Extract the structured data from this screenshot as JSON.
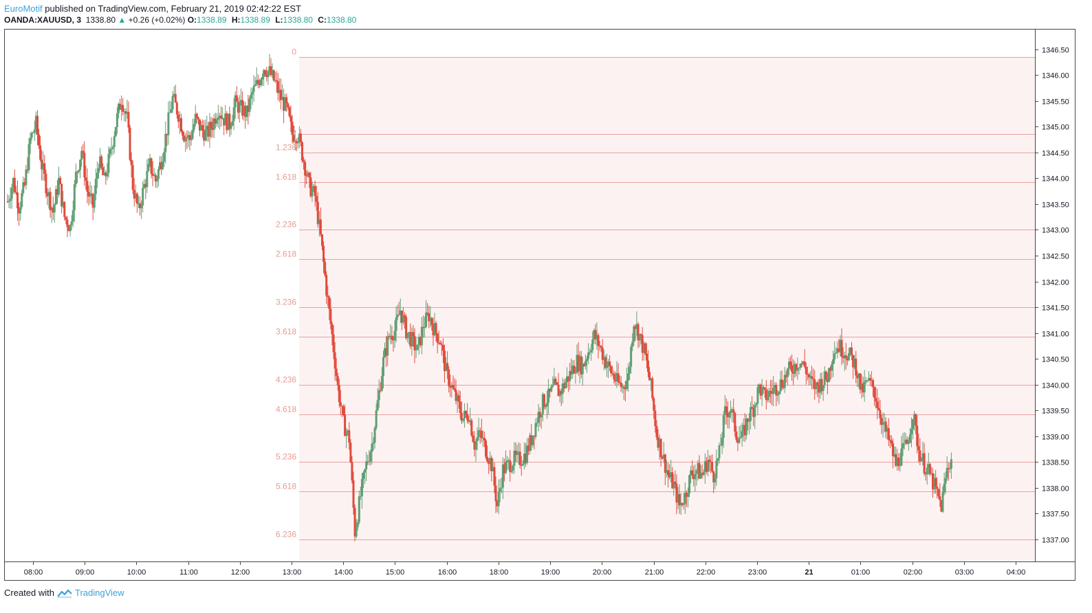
{
  "header": {
    "author": "EuroMotif",
    "published_text": "published on TradingView.com, February 21, 2019 02:42:22 EST",
    "symbol": "OANDA:XAUUSD, 3",
    "last_price": "1338.80",
    "change": "+0.26 (+0.02%)",
    "ohlc": {
      "o_label": "O:",
      "o_value": "1338.89",
      "h_label": "H:",
      "h_value": "1338.89",
      "l_label": "L:",
      "l_value": "1338.80",
      "c_label": "C:",
      "c_value": "1338.80"
    }
  },
  "footer": {
    "created_with": "Created with",
    "brand": "TradingView"
  },
  "colors": {
    "up": "#5f9e74",
    "down": "#e04a3c",
    "fib_line": "#e8a0a0",
    "fib_label": "#e89a90",
    "fib_band": "#fdf2f2",
    "axis_text": "#131722",
    "brand": "#3ca0d8"
  },
  "chart_data": {
    "type": "candlestick",
    "instrument": "OANDA:XAUUSD",
    "interval": "3",
    "y_axis": {
      "range": [
        1336.6,
        1347.0
      ],
      "ticks": [
        "1346.50",
        "1346.00",
        "1345.50",
        "1345.00",
        "1344.50",
        "1344.00",
        "1343.50",
        "1343.00",
        "1342.50",
        "1342.00",
        "1341.50",
        "1341.00",
        "1340.50",
        "1340.00",
        "1339.50",
        "1339.00",
        "1338.50",
        "1338.00",
        "1337.50",
        "1337.00"
      ]
    },
    "x_axis": {
      "ticks": [
        "08:00",
        "09:00",
        "10:00",
        "11:00",
        "12:00",
        "13:00",
        "14:00",
        "15:00",
        "16:00",
        "18:00",
        "19:00",
        "20:00",
        "21:00",
        "22:00",
        "23:00",
        "21",
        "01:00",
        "02:00",
        "03:00",
        "04:00"
      ],
      "bold_ticks": [
        "21"
      ]
    },
    "fibonacci_extension": {
      "levels": [
        {
          "ratio": "0",
          "price": 1346.35
        },
        {
          "ratio": "1",
          "price": 1344.85
        },
        {
          "ratio": "1.236",
          "price": 1344.5
        },
        {
          "ratio": "1.618",
          "price": 1343.93
        },
        {
          "ratio": "2.236",
          "price": 1343.0
        },
        {
          "ratio": "2.618",
          "price": 1342.43
        },
        {
          "ratio": "3.236",
          "price": 1341.5
        },
        {
          "ratio": "3.618",
          "price": 1340.93
        },
        {
          "ratio": "4.236",
          "price": 1340.0
        },
        {
          "ratio": "4.618",
          "price": 1339.43
        },
        {
          "ratio": "5.236",
          "price": 1338.5
        },
        {
          "ratio": "5.618",
          "price": 1337.93
        },
        {
          "ratio": "6.236",
          "price": 1337.0
        }
      ]
    },
    "price_path": [
      [
        0,
        1343.55
      ],
      [
        1,
        1343.95
      ],
      [
        2,
        1343.45
      ],
      [
        3,
        1343.85
      ],
      [
        4,
        1344.75
      ],
      [
        5,
        1345.05
      ],
      [
        6,
        1344.25
      ],
      [
        7,
        1343.75
      ],
      [
        8,
        1343.35
      ],
      [
        9,
        1343.95
      ],
      [
        10,
        1343.25
      ],
      [
        11,
        1343.05
      ],
      [
        12,
        1344.05
      ],
      [
        13,
        1344.55
      ],
      [
        14,
        1343.75
      ],
      [
        15,
        1343.45
      ],
      [
        16,
        1344.35
      ],
      [
        17,
        1343.95
      ],
      [
        18,
        1344.45
      ],
      [
        19,
        1345.05
      ],
      [
        20,
        1345.55
      ],
      [
        21,
        1345.15
      ],
      [
        22,
        1343.85
      ],
      [
        23,
        1343.35
      ],
      [
        24,
        1343.85
      ],
      [
        25,
        1344.25
      ],
      [
        26,
        1343.95
      ],
      [
        27,
        1344.35
      ],
      [
        28,
        1344.95
      ],
      [
        29,
        1345.55
      ],
      [
        30,
        1345.25
      ],
      [
        31,
        1344.85
      ],
      [
        32,
        1344.75
      ],
      [
        33,
        1345.15
      ],
      [
        34,
        1344.95
      ],
      [
        35,
        1344.85
      ],
      [
        36,
        1345.05
      ],
      [
        37,
        1345.35
      ],
      [
        38,
        1345.15
      ],
      [
        39,
        1345.05
      ],
      [
        40,
        1345.45
      ],
      [
        41,
        1345.35
      ],
      [
        42,
        1345.25
      ],
      [
        43,
        1345.65
      ],
      [
        44,
        1345.85
      ],
      [
        45,
        1346.15
      ],
      [
        46,
        1346.05
      ],
      [
        47,
        1345.85
      ],
      [
        48,
        1345.55
      ],
      [
        49,
        1345.35
      ],
      [
        50,
        1344.85
      ],
      [
        51,
        1344.85
      ],
      [
        52,
        1344.35
      ],
      [
        53,
        1343.85
      ],
      [
        54,
        1343.65
      ],
      [
        55,
        1342.85
      ],
      [
        56,
        1341.85
      ],
      [
        57,
        1340.95
      ],
      [
        58,
        1339.95
      ],
      [
        59,
        1339.25
      ],
      [
        60,
        1338.95
      ],
      [
        61,
        1337.15
      ],
      [
        62,
        1337.85
      ],
      [
        63,
        1338.45
      ],
      [
        64,
        1338.85
      ],
      [
        65,
        1339.65
      ],
      [
        66,
        1340.45
      ],
      [
        67,
        1340.95
      ],
      [
        68,
        1341.05
      ],
      [
        69,
        1341.45
      ],
      [
        70,
        1341.05
      ],
      [
        71,
        1340.85
      ],
      [
        72,
        1340.65
      ],
      [
        73,
        1341.15
      ],
      [
        74,
        1341.35
      ],
      [
        75,
        1341.05
      ],
      [
        76,
        1340.85
      ],
      [
        77,
        1340.25
      ],
      [
        78,
        1339.95
      ],
      [
        79,
        1339.65
      ],
      [
        80,
        1339.35
      ],
      [
        81,
        1339.45
      ],
      [
        82,
        1338.85
      ],
      [
        83,
        1339.05
      ],
      [
        84,
        1338.75
      ],
      [
        85,
        1338.45
      ],
      [
        86,
        1337.65
      ],
      [
        87,
        1338.35
      ],
      [
        88,
        1338.45
      ],
      [
        89,
        1338.55
      ],
      [
        90,
        1338.55
      ],
      [
        91,
        1338.65
      ],
      [
        92,
        1338.95
      ],
      [
        93,
        1339.35
      ],
      [
        94,
        1339.65
      ],
      [
        95,
        1339.75
      ],
      [
        96,
        1339.95
      ],
      [
        97,
        1339.85
      ],
      [
        98,
        1340.05
      ],
      [
        99,
        1340.25
      ],
      [
        100,
        1340.45
      ],
      [
        101,
        1340.35
      ],
      [
        102,
        1340.65
      ],
      [
        103,
        1340.95
      ],
      [
        104,
        1340.75
      ],
      [
        105,
        1340.45
      ],
      [
        106,
        1340.25
      ],
      [
        107,
        1340.05
      ],
      [
        108,
        1339.95
      ],
      [
        109,
        1340.15
      ],
      [
        110,
        1341.25
      ],
      [
        111,
        1340.95
      ],
      [
        112,
        1340.55
      ],
      [
        113,
        1339.95
      ],
      [
        114,
        1339.05
      ],
      [
        115,
        1338.65
      ],
      [
        116,
        1338.25
      ],
      [
        117,
        1338.05
      ],
      [
        118,
        1337.65
      ],
      [
        119,
        1337.85
      ],
      [
        120,
        1338.25
      ],
      [
        121,
        1338.35
      ],
      [
        122,
        1338.25
      ],
      [
        123,
        1338.55
      ],
      [
        124,
        1338.25
      ],
      [
        125,
        1338.65
      ],
      [
        126,
        1339.45
      ],
      [
        127,
        1339.55
      ],
      [
        128,
        1339.05
      ],
      [
        129,
        1338.95
      ],
      [
        130,
        1339.35
      ],
      [
        131,
        1339.55
      ],
      [
        132,
        1339.95
      ],
      [
        133,
        1339.75
      ],
      [
        134,
        1339.85
      ],
      [
        135,
        1339.95
      ],
      [
        136,
        1340.05
      ],
      [
        137,
        1340.25
      ],
      [
        138,
        1340.35
      ],
      [
        139,
        1340.45
      ],
      [
        140,
        1340.35
      ],
      [
        141,
        1340.05
      ],
      [
        142,
        1339.95
      ],
      [
        143,
        1340.05
      ],
      [
        144,
        1340.15
      ],
      [
        145,
        1340.65
      ],
      [
        146,
        1340.75
      ],
      [
        147,
        1340.65
      ],
      [
        148,
        1340.55
      ],
      [
        149,
        1340.35
      ],
      [
        150,
        1339.85
      ],
      [
        151,
        1340.05
      ],
      [
        152,
        1339.95
      ],
      [
        153,
        1339.55
      ],
      [
        154,
        1339.15
      ],
      [
        155,
        1338.85
      ],
      [
        156,
        1338.45
      ],
      [
        157,
        1338.65
      ],
      [
        158,
        1338.85
      ],
      [
        159,
        1339.45
      ],
      [
        160,
        1338.75
      ],
      [
        161,
        1338.45
      ],
      [
        162,
        1338.25
      ],
      [
        163,
        1337.95
      ],
      [
        164,
        1337.65
      ],
      [
        165,
        1338.35
      ],
      [
        166,
        1338.65
      ],
      [
        167,
        1338.55
      ],
      [
        168,
        1338.85
      ],
      [
        169,
        1339.35
      ],
      [
        170,
        1338.95
      ],
      [
        171,
        1338.85
      ]
    ]
  }
}
